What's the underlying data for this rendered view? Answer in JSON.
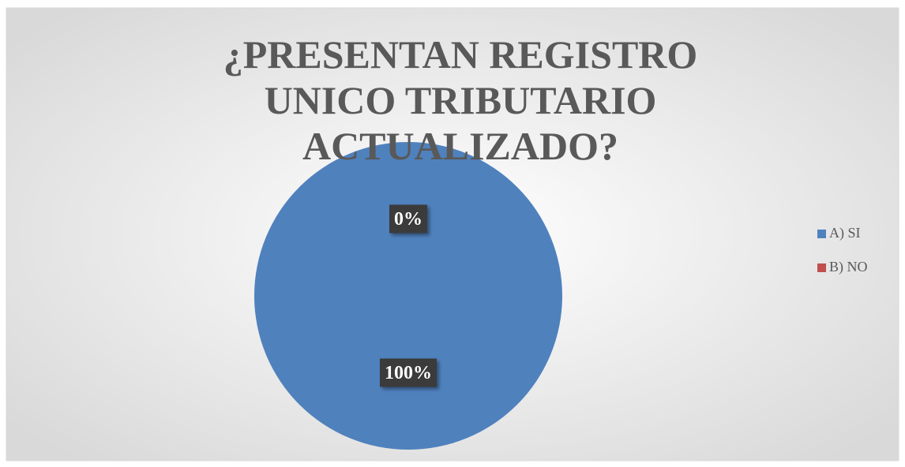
{
  "chart_data": {
    "type": "pie",
    "title": "¿PRESENTAN REGISTRO UNICO TRIBUTARIO ACTUALIZADO?",
    "categories": [
      "A) SI",
      "B) NO"
    ],
    "values": [
      100,
      0
    ],
    "value_labels": [
      "100%",
      "0%"
    ],
    "colors": [
      "#4f81bd",
      "#c0504d"
    ],
    "legend": "right"
  }
}
